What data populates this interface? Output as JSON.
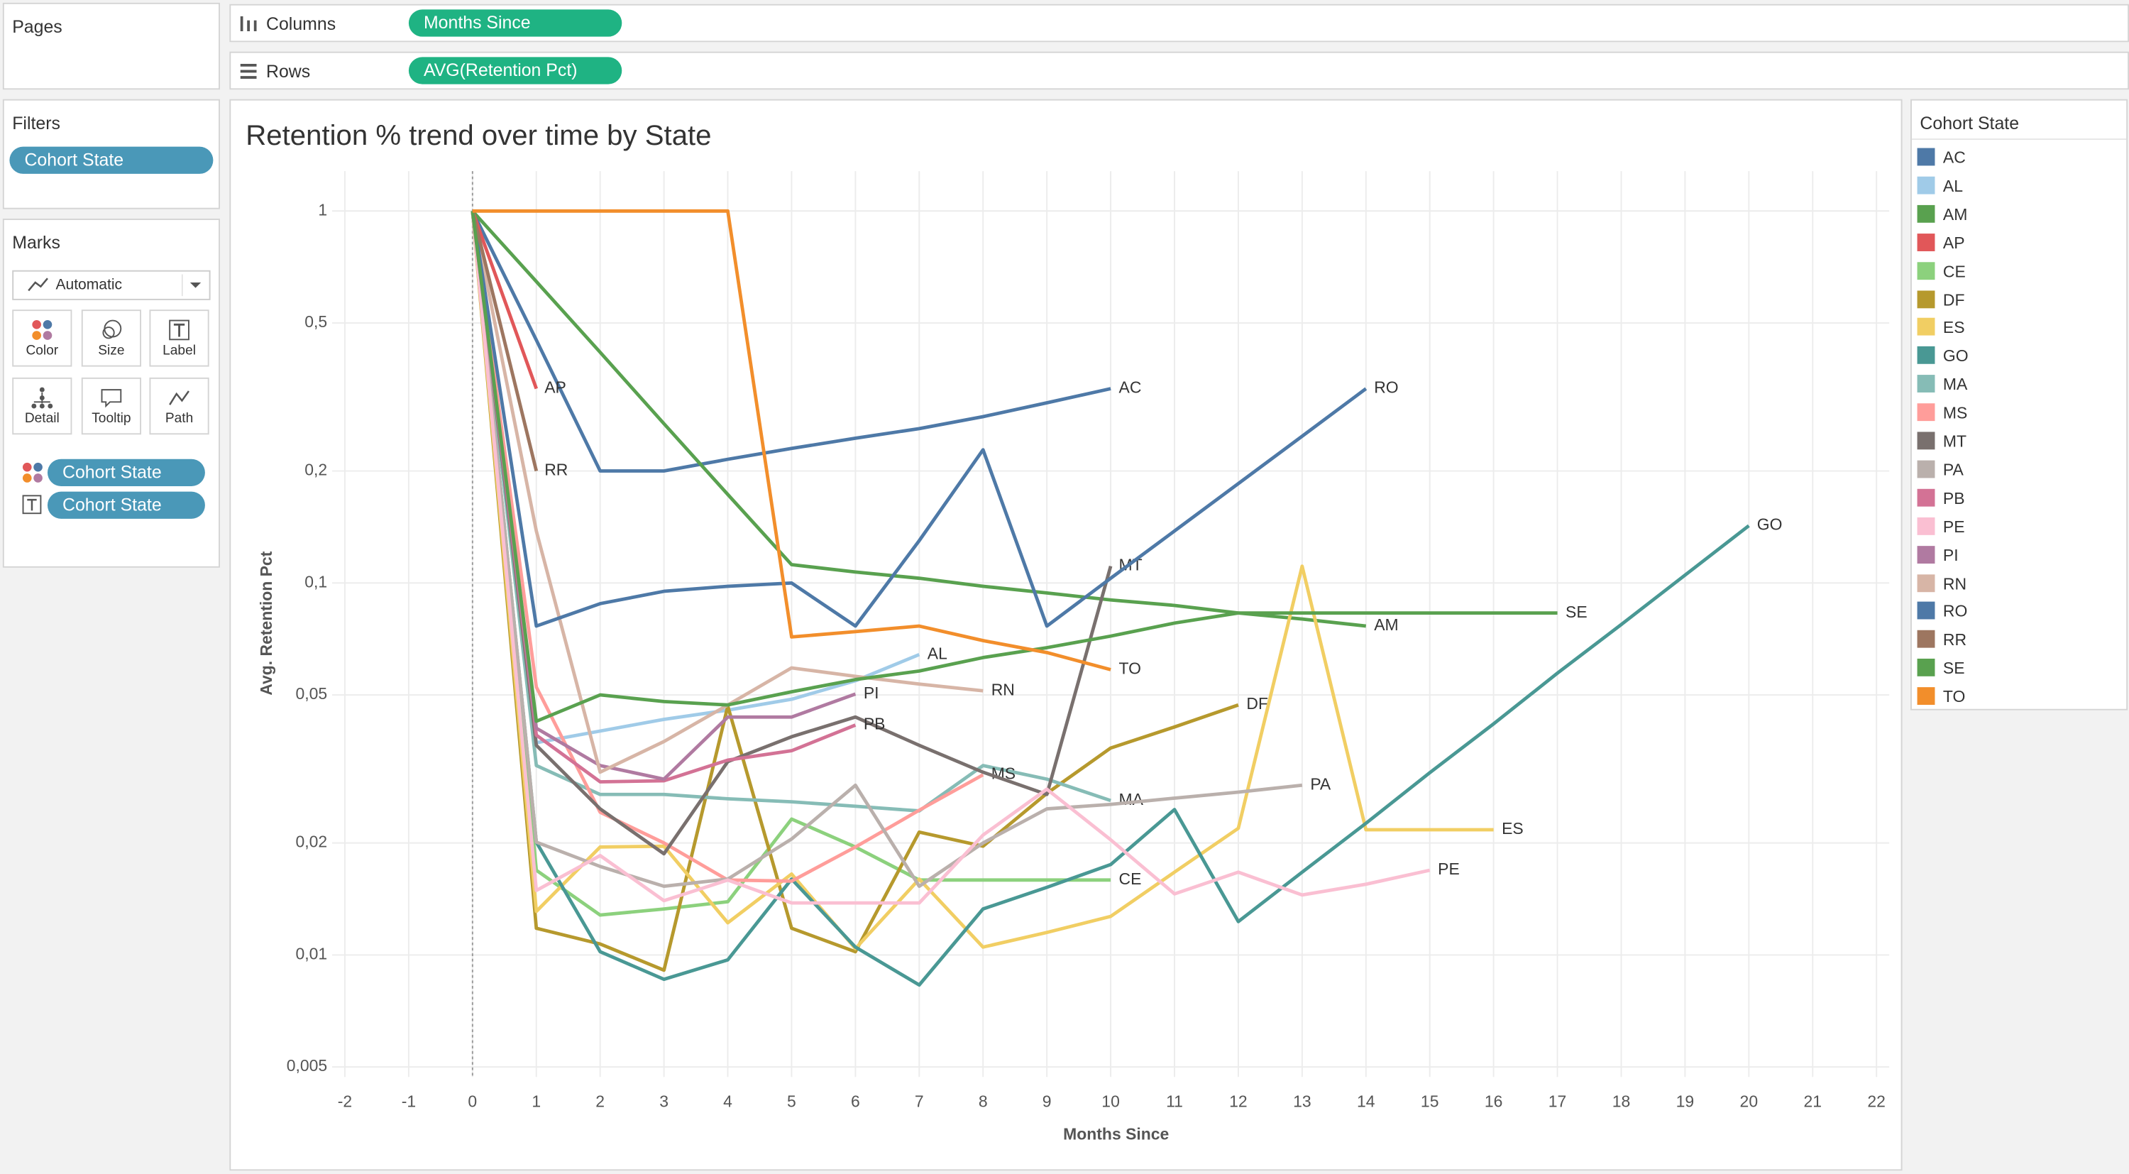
{
  "shelves": {
    "pages": "Pages",
    "columns_label": "Columns",
    "columns_pill": "Months Since",
    "rows_label": "Rows",
    "rows_pill": "AVG(Retention Pct)"
  },
  "filters": {
    "title": "Filters",
    "pill": "Cohort State"
  },
  "marks": {
    "title": "Marks",
    "mark_type": "Automatic",
    "buttons": [
      "Color",
      "Size",
      "Label",
      "Detail",
      "Tooltip",
      "Path"
    ],
    "pills": [
      "Cohort State",
      "Cohort State"
    ]
  },
  "legend": {
    "title": "Cohort State"
  },
  "chart_data": {
    "type": "line",
    "title": "Retention % trend over time by State",
    "x_label": "Months Since",
    "y_label": "Avg. Retention Pct",
    "log_y": true,
    "grid": true,
    "xlim": [
      -2.2,
      22.2
    ],
    "xticks": [
      -2,
      -1,
      0,
      1,
      2,
      3,
      4,
      5,
      6,
      7,
      8,
      9,
      10,
      11,
      12,
      13,
      14,
      15,
      16,
      17,
      18,
      19,
      20,
      21,
      22
    ],
    "ylim": [
      0.0047,
      1.28
    ],
    "yticks": [
      1,
      {
        "value": 0.5,
        "label": "0,5"
      },
      {
        "value": 0.2,
        "label": "0,2"
      },
      {
        "value": 0.1,
        "label": "0,1"
      },
      {
        "value": 0.05,
        "label": "0,05"
      },
      {
        "value": 0.02,
        "label": "0,02"
      },
      {
        "value": 0.01,
        "label": "0,01"
      },
      {
        "value": 0.005,
        "label": "0,005"
      }
    ],
    "series": [
      {
        "name": "AC",
        "color": "#4e79a7",
        "x": [
          0,
          1,
          2,
          3,
          4,
          5,
          6,
          7,
          8,
          9,
          10
        ],
        "values": [
          1,
          0.45,
          0.2,
          0.2,
          0.215,
          0.23,
          0.245,
          0.26,
          0.28,
          0.305,
          0.333
        ]
      },
      {
        "name": "AL",
        "color": "#a0cbe8",
        "x": [
          0,
          1,
          2,
          3,
          4,
          5,
          6,
          7
        ],
        "values": [
          1,
          0.0372,
          0.04,
          0.043,
          0.0455,
          0.0487,
          0.0546,
          0.0642
        ]
      },
      {
        "name": "AM",
        "color": "#59a14f",
        "x": [
          0,
          1,
          2,
          3,
          4,
          5,
          6,
          7,
          8,
          9,
          10,
          11,
          12,
          13,
          14
        ],
        "values": [
          1,
          0.646,
          0.417,
          0.268,
          0.173,
          0.112,
          0.107,
          0.103,
          0.098,
          0.094,
          0.09,
          0.087,
          0.083,
          0.08,
          0.0766
        ]
      },
      {
        "name": "AP",
        "color": "#e15759",
        "x": [
          0,
          1
        ],
        "values": [
          1,
          0.333
        ]
      },
      {
        "name": "CE",
        "color": "#8cd17d",
        "x": [
          0,
          1,
          2,
          3,
          4,
          5,
          6,
          7,
          8,
          9,
          10
        ],
        "values": [
          1,
          0.0169,
          0.0128,
          0.0133,
          0.0139,
          0.0232,
          0.0195,
          0.0159,
          0.0159,
          0.0159,
          0.0159
        ]
      },
      {
        "name": "DF",
        "color": "#b6992d",
        "x": [
          0,
          1,
          2,
          3,
          4,
          5,
          6,
          7,
          8,
          9,
          10,
          11,
          12
        ],
        "values": [
          1,
          0.0118,
          0.0107,
          0.0091,
          0.0467,
          0.0118,
          0.0102,
          0.0214,
          0.0196,
          0.0272,
          0.036,
          0.041,
          0.047
        ]
      },
      {
        "name": "ES",
        "color": "#f1ce63",
        "x": [
          0,
          1,
          2,
          3,
          4,
          5,
          6,
          7,
          8,
          9,
          10,
          11,
          12,
          13,
          14,
          15,
          16
        ],
        "values": [
          1,
          0.0131,
          0.0195,
          0.0196,
          0.0122,
          0.0165,
          0.0104,
          0.016,
          0.0105,
          0.0115,
          0.0127,
          0.0167,
          0.0219,
          0.111,
          0.0217,
          0.0217,
          0.0217
        ]
      },
      {
        "name": "GO",
        "color": "#499894",
        "x": [
          0,
          1,
          2,
          3,
          4,
          5,
          6,
          7,
          8,
          9,
          10,
          11,
          12,
          13,
          14,
          15,
          16,
          17,
          18,
          19,
          20
        ],
        "values": [
          1,
          0.0201,
          0.0102,
          0.0086,
          0.0097,
          0.016,
          0.0105,
          0.0083,
          0.0133,
          0.0152,
          0.0175,
          0.0246,
          0.0123,
          0.0167,
          0.0226,
          0.0309,
          0.0418,
          0.0572,
          0.0773,
          0.105,
          0.1426
        ]
      },
      {
        "name": "MA",
        "color": "#86bcb6",
        "x": [
          0,
          1,
          2,
          3,
          4,
          5,
          6,
          7,
          8,
          9,
          10
        ],
        "values": [
          1,
          0.0323,
          0.027,
          0.027,
          0.0263,
          0.0258,
          0.0251,
          0.0244,
          0.0323,
          0.0297,
          0.026
        ]
      },
      {
        "name": "MS",
        "color": "#ff9d9a",
        "x": [
          0,
          1,
          2,
          3,
          4,
          5,
          6,
          7,
          8
        ],
        "values": [
          1,
          0.0525,
          0.0242,
          0.02,
          0.0159,
          0.0158,
          0.0195,
          0.0245,
          0.0305
        ]
      },
      {
        "name": "MT",
        "color": "#79706e",
        "x": [
          0,
          1,
          2,
          3,
          4,
          5,
          6,
          7,
          8,
          9,
          10
        ],
        "values": [
          1,
          0.0366,
          0.0247,
          0.0187,
          0.0331,
          0.0386,
          0.0436,
          0.0366,
          0.031,
          0.027,
          0.111
        ]
      },
      {
        "name": "PA",
        "color": "#bab0ac",
        "x": [
          0,
          1,
          2,
          3,
          4,
          5,
          6,
          7,
          8,
          9,
          10,
          11,
          12,
          13
        ],
        "values": [
          1,
          0.0201,
          0.0173,
          0.0153,
          0.016,
          0.0205,
          0.0286,
          0.0153,
          0.02,
          0.0247,
          0.0254,
          0.0264,
          0.0274,
          0.0286
        ]
      },
      {
        "name": "PB",
        "color": "#d37295",
        "x": [
          0,
          1,
          2,
          3,
          4,
          5,
          6
        ],
        "values": [
          1,
          0.039,
          0.0292,
          0.0294,
          0.0334,
          0.0354,
          0.0415
        ]
      },
      {
        "name": "PE",
        "color": "#fabfd2",
        "x": [
          0,
          1,
          2,
          3,
          4,
          5,
          6,
          7,
          8,
          9,
          10,
          11,
          12,
          13,
          14,
          15
        ],
        "values": [
          1,
          0.0149,
          0.0185,
          0.014,
          0.0159,
          0.0138,
          0.0138,
          0.0138,
          0.021,
          0.0279,
          0.0204,
          0.0146,
          0.0167,
          0.0145,
          0.0155,
          0.0169
        ]
      },
      {
        "name": "PI",
        "color": "#b07aa1",
        "x": [
          0,
          1,
          2,
          3,
          4,
          5,
          6
        ],
        "values": [
          1,
          0.0407,
          0.0323,
          0.0297,
          0.0436,
          0.0436,
          0.0503
        ]
      },
      {
        "name": "RN",
        "color": "#d7b5a6",
        "x": [
          0,
          1,
          2,
          3,
          4,
          5,
          6,
          7,
          8
        ],
        "values": [
          1,
          0.138,
          0.031,
          0.0375,
          0.047,
          0.0591,
          0.0561,
          0.0535,
          0.0513
        ]
      },
      {
        "name": "RO",
        "color": "#4e79a7",
        "x": [
          0,
          1,
          2,
          3,
          4,
          5,
          6,
          7,
          8,
          9,
          10,
          11,
          12,
          13,
          14
        ],
        "values": [
          1,
          0.0766,
          0.088,
          0.095,
          0.098,
          0.1,
          0.0766,
          0.13,
          0.228,
          0.0766,
          0.103,
          0.138,
          0.185,
          0.248,
          0.333
        ]
      },
      {
        "name": "RR",
        "color": "#9d7660",
        "x": [
          0,
          1
        ],
        "values": [
          1,
          0.2
        ]
      },
      {
        "name": "SE",
        "color": "#59a14f",
        "x": [
          0,
          1,
          2,
          3,
          4,
          5,
          6,
          7,
          8,
          9,
          10,
          11,
          12,
          13,
          14,
          15,
          16,
          17
        ],
        "values": [
          1,
          0.0425,
          0.05,
          0.048,
          0.047,
          0.051,
          0.055,
          0.058,
          0.063,
          0.067,
          0.072,
          0.078,
          0.083,
          0.083,
          0.083,
          0.083,
          0.083,
          0.083
        ]
      },
      {
        "name": "TO",
        "color": "#f28e2b",
        "x": [
          0,
          1,
          2,
          3,
          4,
          5,
          6,
          7,
          8,
          9,
          10
        ],
        "values": [
          1,
          1,
          1,
          1,
          1,
          0.0716,
          0.074,
          0.0766,
          0.07,
          0.065,
          0.0585
        ]
      }
    ]
  }
}
